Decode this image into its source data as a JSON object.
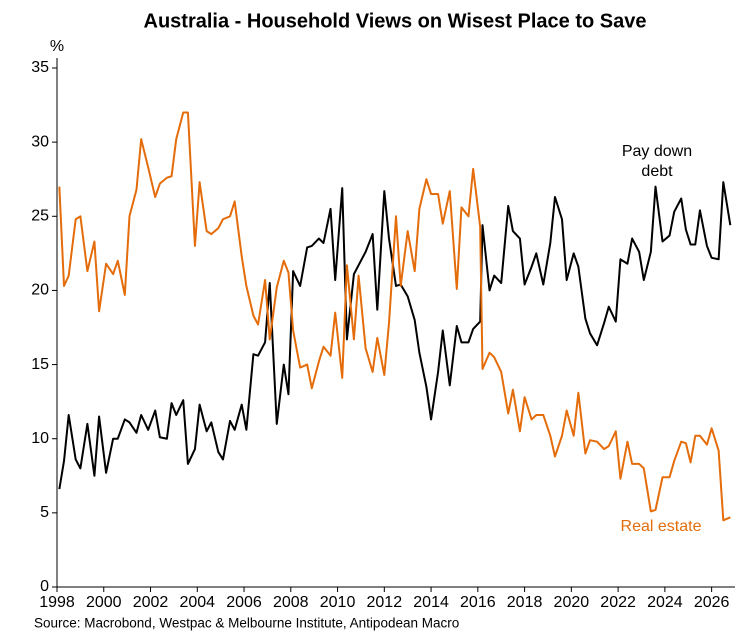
{
  "chart_data": {
    "type": "line",
    "title": "Australia - Household Views on Wisest Place to Save",
    "y_label": "%",
    "source": "Source: Macrobond, Westpac & Melbourne Institute, Antipodean Macro",
    "xlim": [
      1998,
      2027
    ],
    "xticks": [
      1998,
      2000,
      2002,
      2004,
      2006,
      2008,
      2010,
      2012,
      2014,
      2016,
      2018,
      2020,
      2022,
      2024,
      2026
    ],
    "ylim": [
      0,
      35
    ],
    "yticks": [
      0,
      5,
      10,
      15,
      20,
      25,
      30,
      35
    ],
    "grid": false,
    "x": [
      1998.1,
      1998.3,
      1998.5,
      1998.8,
      1999.0,
      1999.3,
      1999.6,
      1999.8,
      2000.1,
      2000.4,
      2000.6,
      2000.9,
      2001.1,
      2001.4,
      2001.6,
      2001.9,
      2002.2,
      2002.4,
      2002.7,
      2002.9,
      2003.1,
      2003.4,
      2003.6,
      2003.9,
      2004.1,
      2004.4,
      2004.6,
      2004.9,
      2005.1,
      2005.4,
      2005.6,
      2005.9,
      2006.1,
      2006.4,
      2006.6,
      2006.9,
      2007.1,
      2007.4,
      2007.7,
      2007.9,
      2008.1,
      2008.4,
      2008.7,
      2008.9,
      2009.2,
      2009.4,
      2009.7,
      2009.9,
      2010.2,
      2010.4,
      2010.7,
      2010.9,
      2011.2,
      2011.5,
      2011.7,
      2012.0,
      2012.2,
      2012.5,
      2012.7,
      2013.0,
      2013.3,
      2013.5,
      2013.8,
      2014.0,
      2014.3,
      2014.5,
      2014.8,
      2015.1,
      2015.3,
      2015.6,
      2015.8,
      2016.1,
      2016.2,
      2016.5,
      2016.7,
      2017.0,
      2017.3,
      2017.5,
      2017.8,
      2018.0,
      2018.3,
      2018.5,
      2018.8,
      2019.1,
      2019.3,
      2019.6,
      2019.8,
      2020.1,
      2020.3,
      2020.6,
      2020.8,
      2021.1,
      2021.4,
      2021.6,
      2021.9,
      2022.1,
      2022.4,
      2022.6,
      2022.9,
      2023.1,
      2023.4,
      2023.6,
      2023.9,
      2024.2,
      2024.4,
      2024.7,
      2024.9,
      2025.1,
      2025.3,
      2025.5,
      2025.8,
      2026.0,
      2026.3,
      2026.5,
      2026.8
    ],
    "series": [
      {
        "name": "Pay down debt",
        "color": "#000000",
        "values": [
          6.6,
          8.5,
          11.6,
          8.6,
          8,
          11,
          7.5,
          11.5,
          7.7,
          10,
          10,
          11.3,
          11.1,
          10.4,
          11.6,
          10.6,
          11.9,
          10.1,
          10,
          12.4,
          11.6,
          12.6,
          8.3,
          9.3,
          12.3,
          10.5,
          11.1,
          9.1,
          8.6,
          11.2,
          10.6,
          12.3,
          10.6,
          15.7,
          15.6,
          16.5,
          20.5,
          11,
          15,
          13,
          21.3,
          20.3,
          22.9,
          23,
          23.5,
          23.2,
          25.5,
          20.7,
          26.9,
          16.7,
          21.1,
          21.7,
          22.6,
          23.8,
          18.7,
          26.7,
          23.5,
          20.3,
          20.4,
          19.6,
          18,
          15.8,
          13.5,
          11.3,
          14.5,
          17.3,
          13.6,
          17.6,
          16.5,
          16.5,
          17.4,
          17.9,
          24.4,
          20,
          21,
          20.5,
          25.7,
          24,
          23.5,
          20.4,
          21.6,
          22.5,
          20.4,
          23.2,
          26.3,
          24.8,
          20.7,
          22.5,
          21.6,
          18.1,
          17.1,
          16.3,
          17.8,
          18.9,
          17.9,
          22.1,
          21.8,
          23.5,
          22.6,
          20.7,
          22.6,
          27,
          23.3,
          23.7,
          25.3,
          26.2,
          24.1,
          23.1,
          23.1,
          25.4,
          23,
          22.2,
          22.1,
          27.3,
          24.4
        ]
      },
      {
        "name": "Real estate",
        "color": "#e46c0a",
        "values": [
          27,
          20.3,
          21,
          24.8,
          25,
          21.3,
          23.3,
          18.6,
          21.8,
          21.1,
          22,
          19.7,
          25,
          26.8,
          30.2,
          28.3,
          26.3,
          27.2,
          27.6,
          27.7,
          30.2,
          32,
          32,
          23,
          27.3,
          24,
          23.8,
          24.2,
          24.8,
          25,
          26,
          22.3,
          20.3,
          18.3,
          17.7,
          20.7,
          16.7,
          20.2,
          22,
          21.2,
          17.3,
          14.8,
          15,
          13.4,
          15.2,
          16.2,
          15.6,
          18.5,
          14.1,
          21.7,
          16.7,
          21,
          16.1,
          14.5,
          16.8,
          14.3,
          17.8,
          25,
          20.3,
          24,
          21.3,
          25.5,
          27.5,
          26.5,
          26.5,
          24.5,
          26.7,
          20.1,
          25.6,
          25,
          28.2,
          24.3,
          14.7,
          15.8,
          15.5,
          14.5,
          11.7,
          13.3,
          10.5,
          12.8,
          11.3,
          11.6,
          11.6,
          10.2,
          8.8,
          10.2,
          11.9,
          10.2,
          13.1,
          9,
          9.9,
          9.8,
          9.3,
          9.5,
          10.5,
          7.3,
          9.8,
          8.3,
          8.3,
          8,
          5.1,
          5.2,
          7.4,
          7.4,
          8.5,
          9.8,
          9.7,
          8.4,
          10.2,
          10.2,
          9.6,
          10.7,
          9.2,
          4.5,
          4.7
        ]
      }
    ]
  }
}
